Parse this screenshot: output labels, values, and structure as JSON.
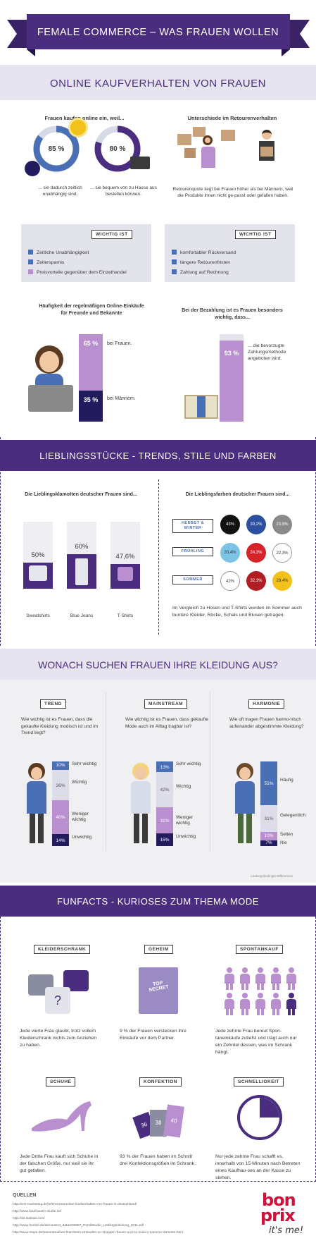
{
  "header": {
    "title": "FEMALE COMMERCE – WAS FRAUEN WOLLEN"
  },
  "s1": {
    "title": "ONLINE KAUFVERHALTEN VON FRAUEN",
    "left_heading": "Frauen kaufen online ein, weil...",
    "pct1": "85 %",
    "pct2": "80 %",
    "cap1": "... sie dadurch zeitlich unabhängig sind.",
    "cap2": "... sie bequem von zu Hause aus bestellen können.",
    "right_heading": "Unterschiede im Retourenverhalten",
    "right_text": "Retourenquote liegt bei Frauen höher als bei Männern, weil die Produkte ihnen nicht ge-passt oder gefallen haben.",
    "wichtig_label": "WICHTIG IST",
    "wichtig_left": [
      "Zeitliche Unabhängigkeit",
      "Zeitersparnis",
      "Preisvorteile gegenüber dem Einzelhandel"
    ],
    "wichtig_right": [
      "komfortabler Rückversand",
      "längere Retourenfristen",
      "Zahlung auf Rechnung"
    ],
    "freq_heading": "Häufigkeit der regelmäßigen Online-Einkäufe für Freunde und Bekannte",
    "freq_women_pct": "65 %",
    "freq_women_label": "bei Frauen.",
    "freq_men_pct": "35 %",
    "freq_men_label": "bei Männern.",
    "pay_heading": "Bei der Bezahlung ist es Frauen besonders wichtig, dass...",
    "pay_pct": "93 %",
    "pay_text": "... die bevorzugte Zahlungsmethode angeboten wird."
  },
  "s2": {
    "title": "LIEBLINGSSTÜCKE - TRENDS, STILE UND FARBEN",
    "left_heading": "Die Lieblingsklamotten deutscher Frauen sind...",
    "items": [
      {
        "pct": "50%",
        "label": "Sweatshirts",
        "value": 50
      },
      {
        "pct": "60%",
        "label": "Blue Jeans",
        "value": 60
      },
      {
        "pct": "47,6%",
        "label": "T-Shirts",
        "value": 47.6
      }
    ],
    "right_heading": "Die Lieblingsfarben deutscher Frauen sind...",
    "seasons": [
      {
        "label": "HERBST & WINTER",
        "dots": [
          {
            "pct": "43%",
            "color": "#111111"
          },
          {
            "pct": "33,2%",
            "color": "#2d4fa0"
          },
          {
            "pct": "23,9%",
            "color": "#8a8a8a"
          }
        ]
      },
      {
        "label": "FRÜHLING",
        "dots": [
          {
            "pct": "20,4%",
            "color": "#7cc4e6"
          },
          {
            "pct": "24,3%",
            "color": "#d6232a"
          },
          {
            "pct": "22,3%",
            "color": "#ffffff"
          }
        ]
      },
      {
        "label": "SOMMER",
        "dots": [
          {
            "pct": "42%",
            "color": "#ffffff"
          },
          {
            "pct": "32,3%",
            "color": "#b01e24"
          },
          {
            "pct": "28,4%",
            "color": "#f3c21a"
          }
        ]
      }
    ],
    "note": "Im Vergleich zu Hosen und T-Shirts werden im Sommer auch buntere Kleider, Röcke, Schals und Blusen getragen."
  },
  "s3": {
    "title": "WONACH SUCHEN FRAUEN IHRE KLEIDUNG AUS?",
    "cols": [
      {
        "tag": "TREND",
        "q": "Wie wichtig ist es Frauen, dass die gekaufte Kleidung modisch ist und im Trend liegt?",
        "segs": [
          {
            "pct": "10%",
            "label": "Sehr wichtig",
            "v": 10
          },
          {
            "pct": "36%",
            "label": "Wichtig",
            "v": 36
          },
          {
            "pct": "40%",
            "label": "Weniger wichtig",
            "v": 40
          },
          {
            "pct": "14%",
            "label": "Unwichtig",
            "v": 14
          }
        ]
      },
      {
        "tag": "MAINSTREAM",
        "q": "Wie wichtig ist es Frauen, dass gekaufte Mode auch im Alltag tragbar ist?",
        "segs": [
          {
            "pct": "13%",
            "label": "Sehr wichtig",
            "v": 13
          },
          {
            "pct": "42%",
            "label": "Wichtig",
            "v": 42
          },
          {
            "pct": "31%",
            "label": "Weniger wichtig",
            "v": 31
          },
          {
            "pct": "15%",
            "label": "Unwichtig",
            "v": 15
          }
        ]
      },
      {
        "tag": "HARMONIE",
        "q": "Wie oft tragen Frauen harmo-nisch aufeinander abgestimmte Kleidung?",
        "segs": [
          {
            "pct": "51%",
            "label": "Häufig",
            "v": 51
          },
          {
            "pct": "31%",
            "label": "Gelegentlich",
            "v": 31
          },
          {
            "pct": "10%",
            "label": "Selten",
            "v": 10
          },
          {
            "pct": "7%",
            "label": "Nie",
            "v": 7
          }
        ]
      }
    ],
    "footnote": "rundungsbedingte Differenzen"
  },
  "s4": {
    "title": "FUNFACTS - KURIOSES ZUM THEMA MODE",
    "facts": [
      {
        "tag": "KLEIDERSCHRANK",
        "text": "Jede vierte Frau glaubt, trotz vollem Kleiderschrank nichts zum Anziehen zu haben."
      },
      {
        "tag": "GEHEIM",
        "text": "9 % der Frauen verstecken ihre Einkäufe vor dem Partner.",
        "bag": "TOP SECRET"
      },
      {
        "tag": "SPONTANKAUF",
        "text": "Jede zehnte Frau bereut Spon-taneinkäufe zutiefst und trägt auch nur ein Zehntel dessen, was im Schrank hängt."
      },
      {
        "tag": "SCHUHE",
        "text": "Jede Dritte Frau kauft sich Schuhe in der falschen Größe, nur weil sie ihr gut gefallen."
      },
      {
        "tag": "KONFEKTION",
        "text": "93 % der Frauen haben im Schnitt drei Konfektionsgrößen im Schrank.",
        "sizes": [
          "36",
          "38",
          "40"
        ]
      },
      {
        "tag": "SCHNELLIGKEIT",
        "text": "Nur jede zehnte Frau schafft es, innerhalb von 15 Minuten nach Betreten eines Kaufhau-ses an der Kasse zu stehen."
      }
    ]
  },
  "footer": {
    "title": "QUELLEN",
    "links": [
      "http://eck-marketing.de/referenzen/online-kaufverhalten-von-frauen-in-deutschland/",
      "http://www.kaufrausch-studie.de/",
      "http://de.statista.com/",
      "http://www.henkel.de/de/content_data/230897_PersilStudie_Lieblingskleidung_2011.pdf",
      "http://www.mopo.de/panorama/lust-frust-beim-einkaufen-so-shoppen-frauen-und-so-leiden-maenner-darunter.html"
    ],
    "logo_top": "bon",
    "logo_mid": "prix",
    "logo_tag": "it's me!"
  },
  "colors": {
    "purple": "#4a2d7f",
    "lilac": "#b98fd0",
    "blue": "#4a6fb5",
    "navy": "#221c5e"
  }
}
